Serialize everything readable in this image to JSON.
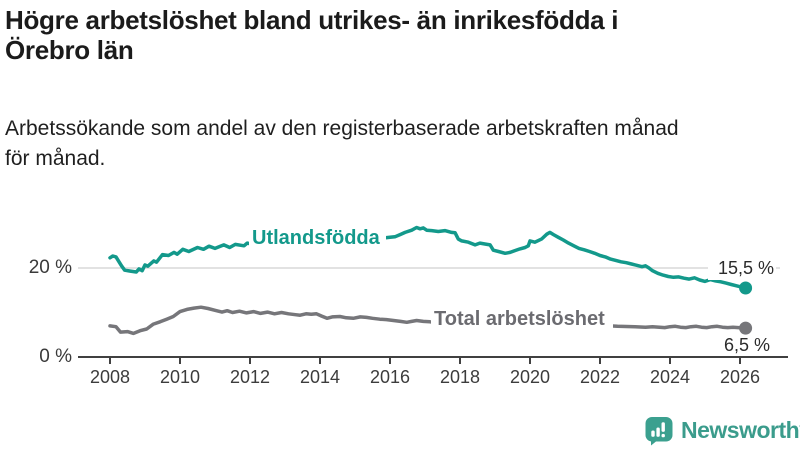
{
  "header": {
    "title_line1": "Högre arbetslöshet bland utrikes- än inrikesfödda i",
    "title_line2": "Örebro län",
    "subtitle_line1": "Arbetssökande som andel av den registerbaserade arbetskraften månad",
    "subtitle_line2": "för månad."
  },
  "colors": {
    "accent_teal": "#13998b",
    "line_gray": "#76767a",
    "grid": "#d9d9d9",
    "axis": "#404040",
    "text": "#1b1b1b",
    "brand_teal": "#3ba08f"
  },
  "chart_data": {
    "type": "line",
    "title": "Högre arbetslöshet bland utrikes- än inrikesfödda i Örebro län",
    "subtitle": "Arbetssökande som andel av den registerbaserade arbetskraften månad för månad.",
    "x_unit": "year, monthly observations",
    "xlim": [
      2007.1,
      2026.9
    ],
    "ylim": [
      0,
      31
    ],
    "grid": "single horizontal gridline at 20 %",
    "legend_position": "labels on lines",
    "x_ticks": [
      2008,
      2010,
      2012,
      2014,
      2016,
      2018,
      2020,
      2022,
      2024,
      2026
    ],
    "y_ticks": [
      {
        "value": 20,
        "label": "20 %"
      },
      {
        "value": 0,
        "label": "0 %"
      }
    ],
    "series": [
      {
        "id": "utlandsfodda",
        "name": "Utlandsfödda",
        "color": "#13998b",
        "end_label": "15,5 %",
        "end_value": 15.5,
        "points": [
          [
            2008.0,
            22.3
          ],
          [
            2008.08,
            22.7
          ],
          [
            2008.17,
            22.5
          ],
          [
            2008.33,
            20.5
          ],
          [
            2008.42,
            19.5
          ],
          [
            2008.58,
            19.3
          ],
          [
            2008.75,
            19.1
          ],
          [
            2008.83,
            19.8
          ],
          [
            2008.92,
            19.4
          ],
          [
            2009.0,
            20.7
          ],
          [
            2009.08,
            20.4
          ],
          [
            2009.25,
            21.6
          ],
          [
            2009.33,
            21.3
          ],
          [
            2009.5,
            23.0
          ],
          [
            2009.67,
            22.8
          ],
          [
            2009.83,
            23.5
          ],
          [
            2009.92,
            23.1
          ],
          [
            2010.08,
            24.2
          ],
          [
            2010.25,
            23.7
          ],
          [
            2010.5,
            24.6
          ],
          [
            2010.67,
            24.2
          ],
          [
            2010.83,
            24.9
          ],
          [
            2011.0,
            24.4
          ],
          [
            2011.25,
            25.2
          ],
          [
            2011.42,
            24.6
          ],
          [
            2011.58,
            25.3
          ],
          [
            2011.83,
            25.0
          ],
          [
            2011.92,
            25.6
          ],
          [
            2012.08,
            25.3
          ],
          [
            2012.25,
            25.6
          ],
          [
            2012.5,
            25.8
          ],
          [
            2012.75,
            25.6
          ],
          [
            2013.0,
            26.0
          ],
          [
            2013.25,
            25.9
          ],
          [
            2013.5,
            26.2
          ],
          [
            2013.75,
            26.1
          ],
          [
            2014.0,
            26.4
          ],
          [
            2014.25,
            26.3
          ],
          [
            2014.5,
            26.6
          ],
          [
            2014.75,
            26.5
          ],
          [
            2015.0,
            26.7
          ],
          [
            2015.25,
            26.6
          ],
          [
            2015.5,
            26.8
          ],
          [
            2015.75,
            26.7
          ],
          [
            2016.0,
            26.9
          ],
          [
            2016.14,
            27.0
          ],
          [
            2016.29,
            27.5
          ],
          [
            2016.43,
            28.0
          ],
          [
            2016.62,
            28.5
          ],
          [
            2016.76,
            29.1
          ],
          [
            2016.86,
            28.8
          ],
          [
            2016.95,
            29.0
          ],
          [
            2017.05,
            28.5
          ],
          [
            2017.19,
            28.4
          ],
          [
            2017.38,
            28.2
          ],
          [
            2017.57,
            28.4
          ],
          [
            2017.76,
            28.0
          ],
          [
            2017.86,
            27.9
          ],
          [
            2017.95,
            26.5
          ],
          [
            2018.05,
            26.1
          ],
          [
            2018.24,
            25.8
          ],
          [
            2018.43,
            25.2
          ],
          [
            2018.57,
            25.6
          ],
          [
            2018.71,
            25.4
          ],
          [
            2018.86,
            25.2
          ],
          [
            2018.95,
            24.0
          ],
          [
            2019.1,
            23.7
          ],
          [
            2019.29,
            23.3
          ],
          [
            2019.43,
            23.5
          ],
          [
            2019.57,
            23.9
          ],
          [
            2019.71,
            24.3
          ],
          [
            2019.86,
            24.6
          ],
          [
            2019.95,
            25.0
          ],
          [
            2020.0,
            26.1
          ],
          [
            2020.14,
            25.8
          ],
          [
            2020.33,
            26.5
          ],
          [
            2020.48,
            27.6
          ],
          [
            2020.57,
            28.0
          ],
          [
            2020.67,
            27.5
          ],
          [
            2020.81,
            26.9
          ],
          [
            2020.95,
            26.3
          ],
          [
            2021.1,
            25.6
          ],
          [
            2021.25,
            25.0
          ],
          [
            2021.4,
            24.4
          ],
          [
            2021.55,
            24.1
          ],
          [
            2021.7,
            23.7
          ],
          [
            2021.85,
            23.3
          ],
          [
            2022.0,
            22.8
          ],
          [
            2022.15,
            22.5
          ],
          [
            2022.3,
            22.0
          ],
          [
            2022.45,
            21.7
          ],
          [
            2022.6,
            21.4
          ],
          [
            2022.75,
            21.2
          ],
          [
            2022.9,
            20.9
          ],
          [
            2023.05,
            20.6
          ],
          [
            2023.2,
            20.3
          ],
          [
            2023.3,
            20.5
          ],
          [
            2023.4,
            20.0
          ],
          [
            2023.5,
            19.4
          ],
          [
            2023.65,
            18.8
          ],
          [
            2023.8,
            18.4
          ],
          [
            2023.95,
            18.1
          ],
          [
            2024.1,
            17.9
          ],
          [
            2024.25,
            18.0
          ],
          [
            2024.4,
            17.7
          ],
          [
            2024.55,
            17.5
          ],
          [
            2024.7,
            17.8
          ],
          [
            2024.85,
            17.3
          ],
          [
            2025.0,
            17.0
          ],
          [
            2025.15,
            17.4
          ],
          [
            2025.3,
            17.1
          ],
          [
            2025.45,
            16.9
          ],
          [
            2025.6,
            16.6
          ],
          [
            2025.75,
            16.3
          ],
          [
            2025.9,
            16.0
          ],
          [
            2026.0,
            15.8
          ],
          [
            2026.16,
            15.5
          ]
        ]
      },
      {
        "id": "total",
        "name": "Total arbetslöshet",
        "color": "#76767a",
        "end_label": "6,5 %",
        "end_value": 6.5,
        "points": [
          [
            2008.0,
            7.0
          ],
          [
            2008.17,
            6.8
          ],
          [
            2008.3,
            5.6
          ],
          [
            2008.5,
            5.7
          ],
          [
            2008.67,
            5.3
          ],
          [
            2008.86,
            5.9
          ],
          [
            2009.05,
            6.3
          ],
          [
            2009.24,
            7.4
          ],
          [
            2009.43,
            7.9
          ],
          [
            2009.62,
            8.5
          ],
          [
            2009.81,
            9.1
          ],
          [
            2010.0,
            10.2
          ],
          [
            2010.2,
            10.7
          ],
          [
            2010.4,
            11.0
          ],
          [
            2010.6,
            11.2
          ],
          [
            2010.8,
            10.9
          ],
          [
            2011.0,
            10.5
          ],
          [
            2011.2,
            10.1
          ],
          [
            2011.35,
            10.4
          ],
          [
            2011.5,
            10.0
          ],
          [
            2011.7,
            10.3
          ],
          [
            2011.9,
            9.9
          ],
          [
            2012.1,
            10.2
          ],
          [
            2012.3,
            9.8
          ],
          [
            2012.5,
            10.1
          ],
          [
            2012.7,
            9.7
          ],
          [
            2012.9,
            10.0
          ],
          [
            2013.1,
            9.7
          ],
          [
            2013.3,
            9.5
          ],
          [
            2013.43,
            9.4
          ],
          [
            2013.6,
            9.7
          ],
          [
            2013.75,
            9.6
          ],
          [
            2013.9,
            9.7
          ],
          [
            2014.05,
            9.2
          ],
          [
            2014.2,
            8.7
          ],
          [
            2014.35,
            9.0
          ],
          [
            2014.57,
            9.1
          ],
          [
            2014.75,
            8.8
          ],
          [
            2014.95,
            8.7
          ],
          [
            2015.15,
            9.0
          ],
          [
            2015.33,
            8.9
          ],
          [
            2015.5,
            8.7
          ],
          [
            2015.71,
            8.5
          ],
          [
            2015.9,
            8.4
          ],
          [
            2016.1,
            8.2
          ],
          [
            2016.3,
            8.0
          ],
          [
            2016.48,
            7.8
          ],
          [
            2016.62,
            8.0
          ],
          [
            2016.76,
            8.2
          ],
          [
            2016.95,
            8.0
          ],
          [
            2017.14,
            7.9
          ],
          [
            2017.3,
            7.7
          ],
          [
            2017.5,
            7.6
          ],
          [
            2017.7,
            7.5
          ],
          [
            2018.0,
            7.3
          ],
          [
            2018.5,
            7.1
          ],
          [
            2019.0,
            6.9
          ],
          [
            2019.5,
            6.8
          ],
          [
            2020.0,
            7.1
          ],
          [
            2020.4,
            8.0
          ],
          [
            2020.7,
            8.3
          ],
          [
            2021.0,
            8.1
          ],
          [
            2021.5,
            7.5
          ],
          [
            2022.0,
            7.1
          ],
          [
            2022.5,
            6.9
          ],
          [
            2023.0,
            6.8
          ],
          [
            2023.3,
            6.7
          ],
          [
            2023.5,
            6.8
          ],
          [
            2023.7,
            6.7
          ],
          [
            2023.85,
            6.6
          ],
          [
            2024.0,
            6.8
          ],
          [
            2024.15,
            6.9
          ],
          [
            2024.3,
            6.7
          ],
          [
            2024.45,
            6.6
          ],
          [
            2024.6,
            6.8
          ],
          [
            2024.75,
            6.9
          ],
          [
            2024.9,
            6.7
          ],
          [
            2025.05,
            6.6
          ],
          [
            2025.2,
            6.8
          ],
          [
            2025.35,
            6.9
          ],
          [
            2025.5,
            6.7
          ],
          [
            2025.65,
            6.6
          ],
          [
            2025.8,
            6.7
          ],
          [
            2025.95,
            6.6
          ],
          [
            2026.16,
            6.5
          ]
        ]
      }
    ]
  },
  "footer": {
    "brand": "Newsworthy",
    "logo_icon": "bar-chart-speech-bubble"
  }
}
